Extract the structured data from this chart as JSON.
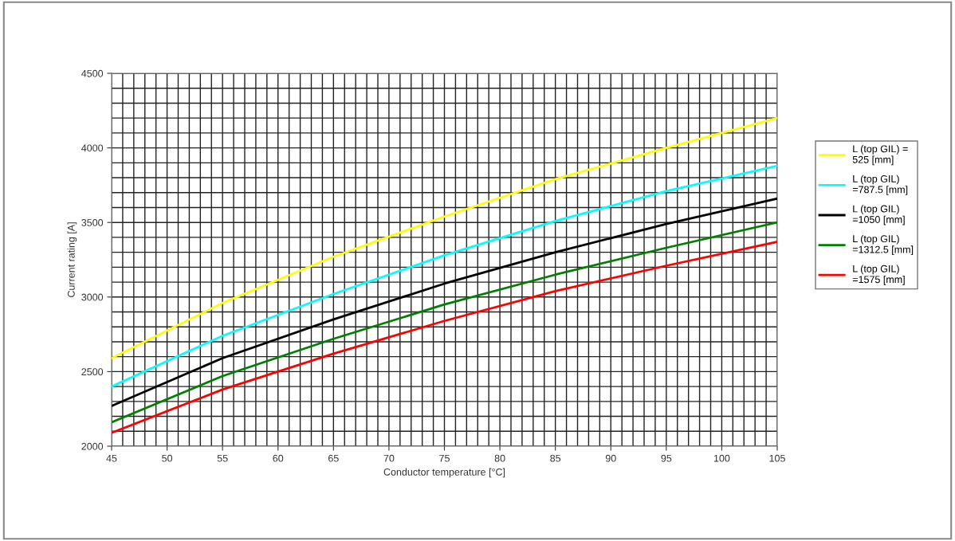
{
  "chart_data": {
    "type": "line",
    "xlabel": "Conductor temperature [°C]",
    "ylabel": "Current rating [A]",
    "x": [
      45,
      55,
      65,
      75,
      85,
      95,
      105
    ],
    "series": [
      {
        "name": "L (top GIL) =\n525 [mm]",
        "color": "#ffff00",
        "values": [
          2590,
          2960,
          3270,
          3540,
          3790,
          4000,
          4200
        ]
      },
      {
        "name": "L (top GIL)\n=787.5 [mm]",
        "color": "#00ffff",
        "values": [
          2400,
          2740,
          3020,
          3280,
          3510,
          3710,
          3880
        ]
      },
      {
        "name": "L (top GIL)\n=1050 [mm]",
        "color": "#000000",
        "values": [
          2270,
          2590,
          2850,
          3090,
          3300,
          3490,
          3660
        ]
      },
      {
        "name": "L (top GIL)\n=1312.5 [mm]",
        "color": "#008000",
        "values": [
          2160,
          2470,
          2720,
          2950,
          3150,
          3330,
          3500
        ]
      },
      {
        "name": "L (top GIL)\n=1575 [mm]",
        "color": "#ff0000",
        "values": [
          2090,
          2380,
          2620,
          2840,
          3040,
          3210,
          3370
        ]
      }
    ],
    "xlim": [
      45,
      105
    ],
    "xticks": [
      45,
      50,
      55,
      60,
      65,
      70,
      75,
      80,
      85,
      90,
      95,
      100,
      105
    ],
    "ylim": [
      2000,
      4500
    ],
    "yticks": [
      2000,
      2500,
      3000,
      3500,
      4000,
      4500
    ],
    "grid": true,
    "legend": "right",
    "marker": "none",
    "line_style": "solid"
  }
}
